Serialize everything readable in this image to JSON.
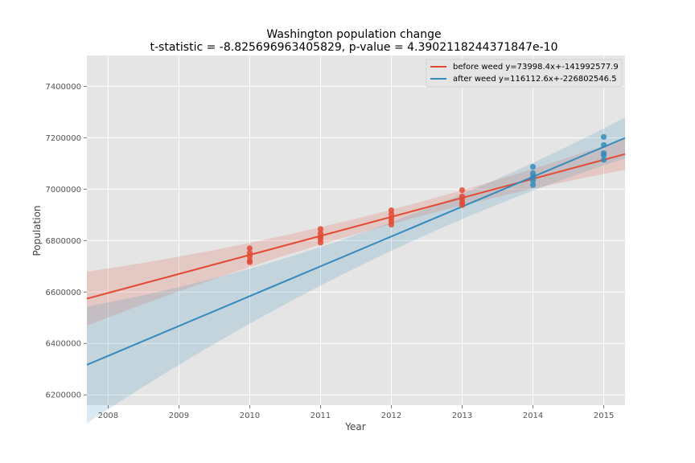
{
  "chart_data": {
    "type": "scatter",
    "title": "Washington population change",
    "subtitle": "t-statistic = -8.825696963405829, p-value = 4.3902118244371847e-10",
    "xlabel": "Year",
    "ylabel": "Population",
    "xlim": [
      2007.7,
      2015.3
    ],
    "ylim": [
      6160000,
      7520000
    ],
    "xticks": [
      2008,
      2009,
      2010,
      2011,
      2012,
      2013,
      2014,
      2015
    ],
    "yticks": [
      6200000,
      6400000,
      6600000,
      6800000,
      7000000,
      7200000,
      7400000
    ],
    "grid": true,
    "legend": "top-right",
    "series": [
      {
        "name": "before weed y=73998.4x+-141992577.9",
        "color": "#e24a33",
        "slope": 73998.4,
        "intercept": -141992577.9,
        "ci_start": 38000,
        "ci_end": 42000,
        "points": [
          [
            2010,
            6770000
          ],
          [
            2010,
            6752000
          ],
          [
            2010,
            6738000
          ],
          [
            2010,
            6722000
          ],
          [
            2010,
            6716000
          ],
          [
            2011,
            6845000
          ],
          [
            2011,
            6828000
          ],
          [
            2011,
            6815000
          ],
          [
            2011,
            6806000
          ],
          [
            2011,
            6792000
          ],
          [
            2012,
            6918000
          ],
          [
            2012,
            6902000
          ],
          [
            2012,
            6887000
          ],
          [
            2012,
            6875000
          ],
          [
            2012,
            6862000
          ],
          [
            2013,
            6996000
          ],
          [
            2013,
            6972000
          ],
          [
            2013,
            6960000
          ],
          [
            2013,
            6948000
          ],
          [
            2013,
            6938000
          ]
        ]
      },
      {
        "name": "after weed y=116112.6x+-226802546.5",
        "color": "#348abd",
        "slope": 116112.6,
        "intercept": -226802546.5,
        "ci_start": 90000,
        "ci_end": 30000,
        "points": [
          [
            2014,
            7087000
          ],
          [
            2014,
            7062000
          ],
          [
            2014,
            7048000
          ],
          [
            2014,
            7034000
          ],
          [
            2014,
            7016000
          ],
          [
            2015,
            7203000
          ],
          [
            2015,
            7172000
          ],
          [
            2015,
            7140000
          ],
          [
            2015,
            7132000
          ],
          [
            2015,
            7114000
          ]
        ]
      }
    ]
  }
}
